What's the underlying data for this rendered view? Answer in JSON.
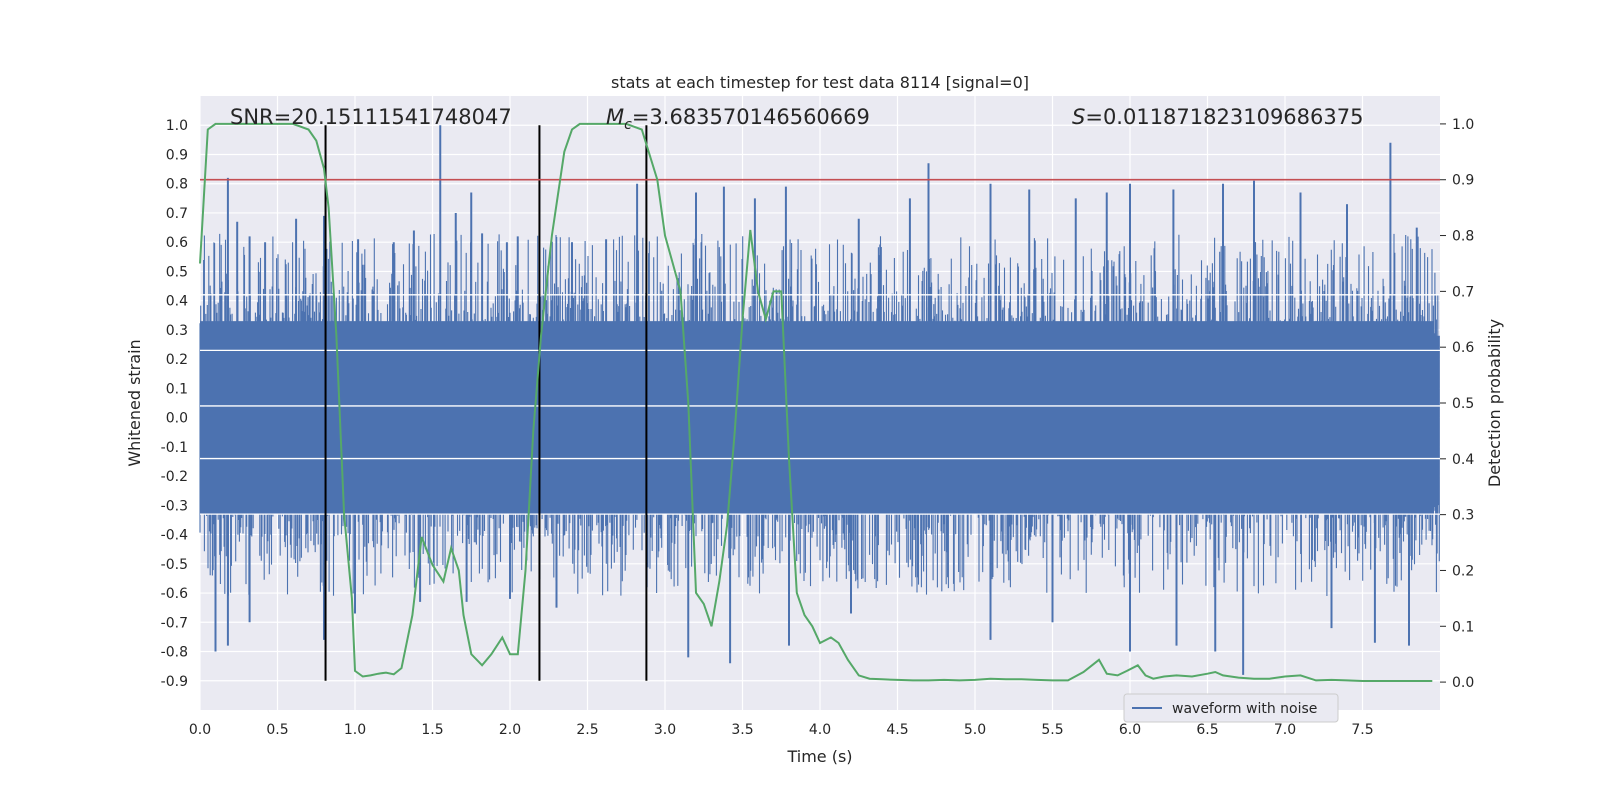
{
  "chart_data": {
    "type": "line",
    "title": "stats at each timestep for test data 8114 [signal=0]",
    "xlabel": "Time (s)",
    "ylabel_left": "Whitened strain",
    "ylabel_right": "Detection probability",
    "xlim": [
      0.0,
      8.0
    ],
    "ylim_left": [
      -1.0,
      1.1
    ],
    "ylim_right": [
      -0.05,
      1.05
    ],
    "x_ticks": [
      "0.0",
      "0.5",
      "1.0",
      "1.5",
      "2.0",
      "2.5",
      "3.0",
      "3.5",
      "4.0",
      "4.5",
      "5.0",
      "5.5",
      "6.0",
      "6.5",
      "7.0",
      "7.5"
    ],
    "y_ticks_left": [
      "-0.9",
      "-0.8",
      "-0.7",
      "-0.6",
      "-0.5",
      "-0.4",
      "-0.3",
      "-0.2",
      "-0.1",
      "0.0",
      "0.1",
      "0.2",
      "0.3",
      "0.4",
      "0.5",
      "0.6",
      "0.7",
      "0.8",
      "0.9",
      "1.0"
    ],
    "y_ticks_right": [
      "0.0",
      "0.1",
      "0.2",
      "0.3",
      "0.4",
      "0.5",
      "0.6",
      "0.7",
      "0.8",
      "0.9",
      "1.0"
    ],
    "grid": true,
    "legend_position": "lower right",
    "annotations": {
      "snr": "SNR=20.15111541748047",
      "mc_symbol": "M",
      "mc_sub": "c",
      "mc_value": "=3.683570146560669",
      "s_symbol": "S",
      "s_value": "=0.011871823109686375"
    },
    "threshold_line": {
      "y_right": 0.9,
      "color": "#c44e52"
    },
    "vertical_markers": {
      "x": [
        0.81,
        2.19,
        2.88
      ],
      "y_range_left": [
        -0.9,
        1.0
      ],
      "color": "#000000"
    },
    "series": [
      {
        "name": "waveform with noise",
        "color": "#4c72b0",
        "axis": "left",
        "description_values": "dense noise waveform, bulk within [-0.33, 0.33], spikes up to 1.0",
        "spikes_up": [
          [
            0.18,
            0.82
          ],
          [
            0.24,
            0.67
          ],
          [
            0.32,
            0.62
          ],
          [
            0.42,
            0.6
          ],
          [
            0.62,
            0.68
          ],
          [
            0.8,
            0.69
          ],
          [
            1.02,
            0.61
          ],
          [
            1.25,
            0.6
          ],
          [
            1.38,
            0.64
          ],
          [
            1.55,
            1.0
          ],
          [
            1.65,
            0.7
          ],
          [
            1.75,
            0.77
          ],
          [
            1.82,
            0.63
          ],
          [
            1.98,
            0.6
          ],
          [
            2.05,
            0.62
          ],
          [
            2.4,
            0.6
          ],
          [
            2.62,
            0.61
          ],
          [
            2.82,
            0.8
          ],
          [
            3.2,
            0.77
          ],
          [
            3.38,
            0.79
          ],
          [
            3.58,
            0.75
          ],
          [
            3.78,
            0.79
          ],
          [
            4.25,
            0.68
          ],
          [
            4.58,
            0.75
          ],
          [
            4.7,
            0.87
          ],
          [
            5.1,
            0.8
          ],
          [
            5.35,
            0.78
          ],
          [
            5.65,
            0.75
          ],
          [
            5.85,
            0.77
          ],
          [
            6.0,
            0.8
          ],
          [
            6.28,
            0.78
          ],
          [
            6.6,
            0.8
          ],
          [
            6.8,
            0.81
          ],
          [
            7.1,
            0.77
          ],
          [
            7.4,
            0.73
          ],
          [
            7.68,
            0.94
          ],
          [
            7.85,
            0.65
          ]
        ],
        "spikes_down": [
          [
            0.1,
            -0.8
          ],
          [
            0.18,
            -0.78
          ],
          [
            0.32,
            -0.7
          ],
          [
            0.8,
            -0.76
          ],
          [
            1.0,
            -0.67
          ],
          [
            1.42,
            -0.63
          ],
          [
            1.72,
            -0.63
          ],
          [
            2.0,
            -0.62
          ],
          [
            2.3,
            -0.65
          ],
          [
            3.15,
            -0.82
          ],
          [
            3.42,
            -0.84
          ],
          [
            3.8,
            -0.78
          ],
          [
            4.2,
            -0.67
          ],
          [
            5.1,
            -0.76
          ],
          [
            5.5,
            -0.7
          ],
          [
            6.0,
            -0.8
          ],
          [
            6.3,
            -0.78
          ],
          [
            6.55,
            -0.8
          ],
          [
            6.73,
            -0.88
          ],
          [
            7.3,
            -0.72
          ],
          [
            7.58,
            -0.77
          ],
          [
            7.8,
            -0.78
          ]
        ]
      },
      {
        "name": "",
        "color": "#55a868",
        "axis": "right",
        "x": [
          0.0,
          0.05,
          0.1,
          0.2,
          0.4,
          0.6,
          0.7,
          0.75,
          0.8,
          0.83,
          0.88,
          0.93,
          0.98,
          1.0,
          1.05,
          1.1,
          1.15,
          1.2,
          1.25,
          1.3,
          1.37,
          1.43,
          1.5,
          1.57,
          1.62,
          1.67,
          1.7,
          1.75,
          1.82,
          1.88,
          1.95,
          2.0,
          2.05,
          2.1,
          2.15,
          2.2,
          2.27,
          2.35,
          2.4,
          2.45,
          2.55,
          2.65,
          2.75,
          2.85,
          2.95,
          3.0,
          3.05,
          3.1,
          3.15,
          3.2,
          3.25,
          3.3,
          3.35,
          3.4,
          3.45,
          3.5,
          3.55,
          3.6,
          3.65,
          3.7,
          3.75,
          3.8,
          3.85,
          3.9,
          3.95,
          4.0,
          4.07,
          4.12,
          4.18,
          4.25,
          4.32,
          4.4,
          4.5,
          4.6,
          4.7,
          4.8,
          4.9,
          5.0,
          5.1,
          5.2,
          5.3,
          5.4,
          5.5,
          5.6,
          5.7,
          5.8,
          5.85,
          5.92,
          5.98,
          6.05,
          6.1,
          6.15,
          6.22,
          6.3,
          6.4,
          6.5,
          6.55,
          6.6,
          6.7,
          6.8,
          6.9,
          7.0,
          7.1,
          7.2,
          7.3,
          7.4,
          7.5,
          7.6,
          7.7,
          7.8,
          7.9,
          7.95
        ],
        "y": [
          0.75,
          0.99,
          1.0,
          1.0,
          1.0,
          1.0,
          0.99,
          0.97,
          0.92,
          0.85,
          0.62,
          0.3,
          0.15,
          0.02,
          0.01,
          0.012,
          0.015,
          0.017,
          0.014,
          0.025,
          0.12,
          0.26,
          0.21,
          0.18,
          0.24,
          0.2,
          0.12,
          0.05,
          0.03,
          0.05,
          0.08,
          0.05,
          0.05,
          0.2,
          0.45,
          0.62,
          0.8,
          0.95,
          0.99,
          1.0,
          1.0,
          1.0,
          1.0,
          0.99,
          0.9,
          0.8,
          0.75,
          0.7,
          0.5,
          0.16,
          0.14,
          0.1,
          0.18,
          0.28,
          0.45,
          0.65,
          0.81,
          0.7,
          0.65,
          0.7,
          0.7,
          0.4,
          0.16,
          0.12,
          0.1,
          0.07,
          0.08,
          0.07,
          0.04,
          0.012,
          0.006,
          0.005,
          0.004,
          0.003,
          0.003,
          0.004,
          0.003,
          0.004,
          0.006,
          0.005,
          0.005,
          0.004,
          0.003,
          0.003,
          0.018,
          0.04,
          0.015,
          0.012,
          0.02,
          0.03,
          0.012,
          0.006,
          0.01,
          0.012,
          0.01,
          0.015,
          0.018,
          0.012,
          0.008,
          0.006,
          0.006,
          0.01,
          0.012,
          0.003,
          0.004,
          0.003,
          0.002,
          0.002,
          0.002,
          0.002,
          0.002,
          0.002
        ]
      }
    ]
  }
}
